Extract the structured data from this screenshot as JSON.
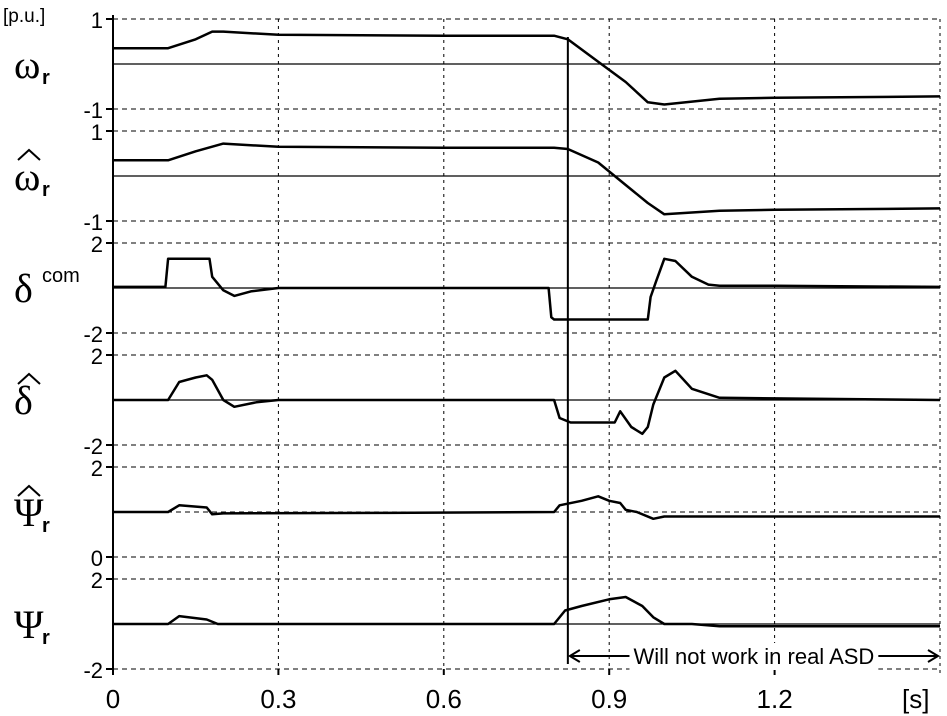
{
  "chart_data": {
    "type": "line",
    "y_unit": "[p.u.]",
    "x_unit": "[s]",
    "x_ticks": [
      "0",
      "0.3",
      "0.6",
      "0.9",
      "1.2"
    ],
    "xlim": [
      0,
      1.5
    ],
    "vertical_marker_x": 0.825,
    "annotation": "Will not work in real ASD",
    "annotation_range": [
      0.825,
      1.5
    ],
    "grid": true,
    "panels": [
      {
        "label": "ω",
        "label_sub": "r",
        "label_hat": false,
        "ylim": [
          -1,
          1
        ],
        "tick_labels": [
          "1",
          "-1"
        ],
        "series": [
          {
            "x": [
              0,
              0.1,
              0.15,
              0.18,
              0.2,
              0.3,
              0.6,
              0.8,
              0.825,
              0.88,
              0.93,
              0.97,
              1.0,
              1.1,
              1.2,
              1.5
            ],
            "y": [
              0.35,
              0.35,
              0.55,
              0.72,
              0.72,
              0.65,
              0.63,
              0.63,
              0.55,
              0.05,
              -0.4,
              -0.85,
              -0.9,
              -0.77,
              -0.75,
              -0.72
            ]
          }
        ]
      },
      {
        "label": "ω",
        "label_sub": "r",
        "label_hat": true,
        "ylim": [
          -1,
          1
        ],
        "tick_labels": [
          "1",
          "-1"
        ],
        "series": [
          {
            "x": [
              0,
              0.1,
              0.15,
              0.2,
              0.3,
              0.6,
              0.8,
              0.825,
              0.88,
              0.93,
              0.97,
              1.0,
              1.1,
              1.2,
              1.5
            ],
            "y": [
              0.35,
              0.35,
              0.55,
              0.72,
              0.65,
              0.63,
              0.63,
              0.6,
              0.3,
              -0.2,
              -0.6,
              -0.85,
              -0.77,
              -0.75,
              -0.72
            ]
          }
        ]
      },
      {
        "label": "δ",
        "label_sup": "com",
        "label_hat": false,
        "ylim": [
          -2,
          2
        ],
        "tick_labels": [
          "2",
          "-2"
        ],
        "series": [
          {
            "x": [
              0,
              0.095,
              0.1,
              0.175,
              0.18,
              0.2,
              0.22,
              0.25,
              0.3,
              0.5,
              0.79,
              0.795,
              0.8,
              0.97,
              0.975,
              0.985,
              1.0,
              1.02,
              1.05,
              1.08,
              1.1,
              1.2,
              1.5
            ],
            "y": [
              0.05,
              0.05,
              1.3,
              1.3,
              0.5,
              -0.1,
              -0.35,
              -0.15,
              0.0,
              0.0,
              0.0,
              -1.3,
              -1.4,
              -1.4,
              -0.4,
              0.3,
              1.3,
              1.2,
              0.5,
              0.15,
              0.1,
              0.1,
              0.05
            ]
          }
        ]
      },
      {
        "label": "δ",
        "label_hat": true,
        "ylim": [
          -2,
          2
        ],
        "tick_labels": [
          "2",
          "-2"
        ],
        "series": [
          {
            "x": [
              0,
              0.1,
              0.12,
              0.15,
              0.17,
              0.18,
              0.2,
              0.22,
              0.26,
              0.3,
              0.5,
              0.8,
              0.81,
              0.83,
              0.87,
              0.91,
              0.92,
              0.94,
              0.96,
              0.97,
              0.98,
              1.0,
              1.02,
              1.05,
              1.1,
              1.5
            ],
            "y": [
              0.0,
              0.0,
              0.8,
              1.0,
              1.1,
              0.9,
              0.0,
              -0.3,
              -0.1,
              0.0,
              0.0,
              0.0,
              -0.8,
              -1.0,
              -1.0,
              -1.0,
              -0.5,
              -1.2,
              -1.5,
              -1.2,
              -0.2,
              1.0,
              1.3,
              0.5,
              0.1,
              0.0
            ]
          }
        ]
      },
      {
        "label": "Ψ",
        "label_sub": "r",
        "label_hat": true,
        "ylim": [
          0,
          2
        ],
        "tick_labels": [
          "2",
          "0"
        ],
        "dashed_levels": [
          1
        ],
        "series": [
          {
            "x": [
              0,
              0.1,
              0.12,
              0.17,
              0.18,
              0.2,
              0.5,
              0.8,
              0.81,
              0.85,
              0.88,
              0.9,
              0.92,
              0.93,
              0.95,
              0.98,
              1.0,
              1.1,
              1.5
            ],
            "y": [
              1.0,
              1.0,
              1.15,
              1.1,
              0.95,
              0.97,
              0.98,
              1.0,
              1.15,
              1.25,
              1.35,
              1.25,
              1.2,
              1.05,
              1.0,
              0.85,
              0.9,
              0.9,
              0.9
            ]
          }
        ]
      },
      {
        "label": "Ψ",
        "label_sub": "r",
        "label_hat": false,
        "ylim": [
          -2,
          2
        ],
        "tick_labels": [
          "2",
          "-2"
        ],
        "series": [
          {
            "x": [
              0,
              0.1,
              0.12,
              0.17,
              0.19,
              0.5,
              0.8,
              0.82,
              0.85,
              0.9,
              0.93,
              0.96,
              0.98,
              1.0,
              1.05,
              1.1,
              1.5
            ],
            "y": [
              0.0,
              0.0,
              0.35,
              0.2,
              0.0,
              0.0,
              0.0,
              0.6,
              0.8,
              1.1,
              1.2,
              0.8,
              0.3,
              0.0,
              0.0,
              -0.1,
              -0.1
            ]
          }
        ]
      }
    ]
  }
}
